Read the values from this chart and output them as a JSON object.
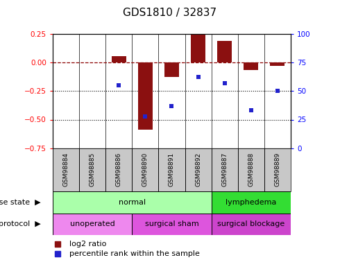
{
  "title": "GDS1810 / 32837",
  "samples": [
    "GSM98884",
    "GSM98885",
    "GSM98886",
    "GSM98890",
    "GSM98891",
    "GSM98892",
    "GSM98887",
    "GSM98888",
    "GSM98889"
  ],
  "log2_ratio": [
    0.0,
    0.0,
    0.055,
    -0.585,
    -0.13,
    0.245,
    0.19,
    -0.065,
    -0.03
  ],
  "percentile_rank": [
    null,
    null,
    55,
    28,
    37,
    62,
    57,
    33,
    50
  ],
  "ylim_left": [
    -0.75,
    0.25
  ],
  "ylim_right": [
    0,
    100
  ],
  "yticks_left": [
    0.25,
    0.0,
    -0.25,
    -0.5,
    -0.75
  ],
  "yticks_right": [
    100,
    75,
    50,
    25,
    0
  ],
  "bar_color": "#8B1010",
  "point_color": "#2222CC",
  "disease_state_groups": [
    {
      "label": "normal",
      "start": 0,
      "end": 6,
      "color": "#AAFFAA"
    },
    {
      "label": "lymphedema",
      "start": 6,
      "end": 9,
      "color": "#33DD33"
    }
  ],
  "protocol_groups": [
    {
      "label": "unoperated",
      "start": 0,
      "end": 3,
      "color": "#EE88EE"
    },
    {
      "label": "surgical sham",
      "start": 3,
      "end": 6,
      "color": "#DD55DD"
    },
    {
      "label": "surgical blockage",
      "start": 6,
      "end": 9,
      "color": "#CC44CC"
    }
  ],
  "legend_items": [
    {
      "label": "log2 ratio",
      "color": "#8B1010"
    },
    {
      "label": "percentile rank within the sample",
      "color": "#2222CC"
    }
  ],
  "row_label_disease": "disease state",
  "row_label_protocol": "protocol"
}
